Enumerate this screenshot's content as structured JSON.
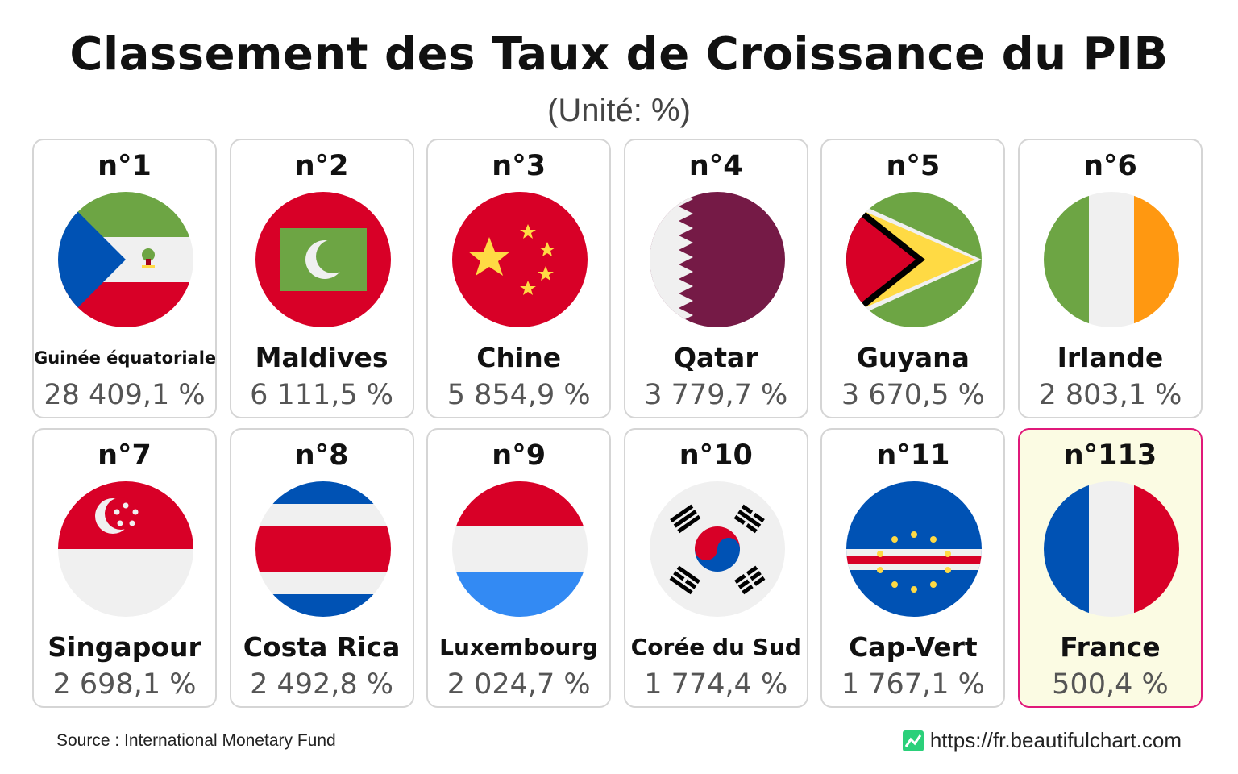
{
  "title": "Classement des Taux de Croissance du PIB",
  "subtitle": "(Unité: %)",
  "source": "Source : International Monetary Fund",
  "url": "https://fr.beautifulchart.com",
  "colors": {
    "highlight_border": "#e0197a",
    "highlight_bg": "#fbfbe3",
    "card_border": "#d5d5d5"
  },
  "chart_data": {
    "type": "table",
    "title": "Classement des Taux de Croissance du PIB",
    "unit": "(Unité: %)",
    "entries": [
      {
        "rank": "n°1",
        "country": "Guinée équatoriale",
        "value": 28409.1,
        "value_label": "28 409,1 %",
        "flag": "equatorial-guinea-flag-icon"
      },
      {
        "rank": "n°2",
        "country": "Maldives",
        "value": 6111.5,
        "value_label": "6 111,5 %",
        "flag": "maldives-flag-icon"
      },
      {
        "rank": "n°3",
        "country": "Chine",
        "value": 5854.9,
        "value_label": "5 854,9 %",
        "flag": "china-flag-icon"
      },
      {
        "rank": "n°4",
        "country": "Qatar",
        "value": 3779.7,
        "value_label": "3 779,7 %",
        "flag": "qatar-flag-icon"
      },
      {
        "rank": "n°5",
        "country": "Guyana",
        "value": 3670.5,
        "value_label": "3 670,5 %",
        "flag": "guyana-flag-icon"
      },
      {
        "rank": "n°6",
        "country": "Irlande",
        "value": 2803.1,
        "value_label": "2 803,1 %",
        "flag": "ireland-flag-icon"
      },
      {
        "rank": "n°7",
        "country": "Singapour",
        "value": 2698.1,
        "value_label": "2 698,1 %",
        "flag": "singapore-flag-icon"
      },
      {
        "rank": "n°8",
        "country": "Costa Rica",
        "value": 2492.8,
        "value_label": "2 492,8 %",
        "flag": "costa-rica-flag-icon"
      },
      {
        "rank": "n°9",
        "country": "Luxembourg",
        "value": 2024.7,
        "value_label": "2 024,7 %",
        "flag": "luxembourg-flag-icon"
      },
      {
        "rank": "n°10",
        "country": "Corée du Sud",
        "value": 1774.4,
        "value_label": "1 774,4 %",
        "flag": "south-korea-flag-icon"
      },
      {
        "rank": "n°11",
        "country": "Cap-Vert",
        "value": 1767.1,
        "value_label": "1 767,1 %",
        "flag": "cape-verde-flag-icon"
      },
      {
        "rank": "n°113",
        "country": "France",
        "value": 500.4,
        "value_label": "500,4 %",
        "flag": "france-flag-icon",
        "highlighted": true
      }
    ]
  }
}
